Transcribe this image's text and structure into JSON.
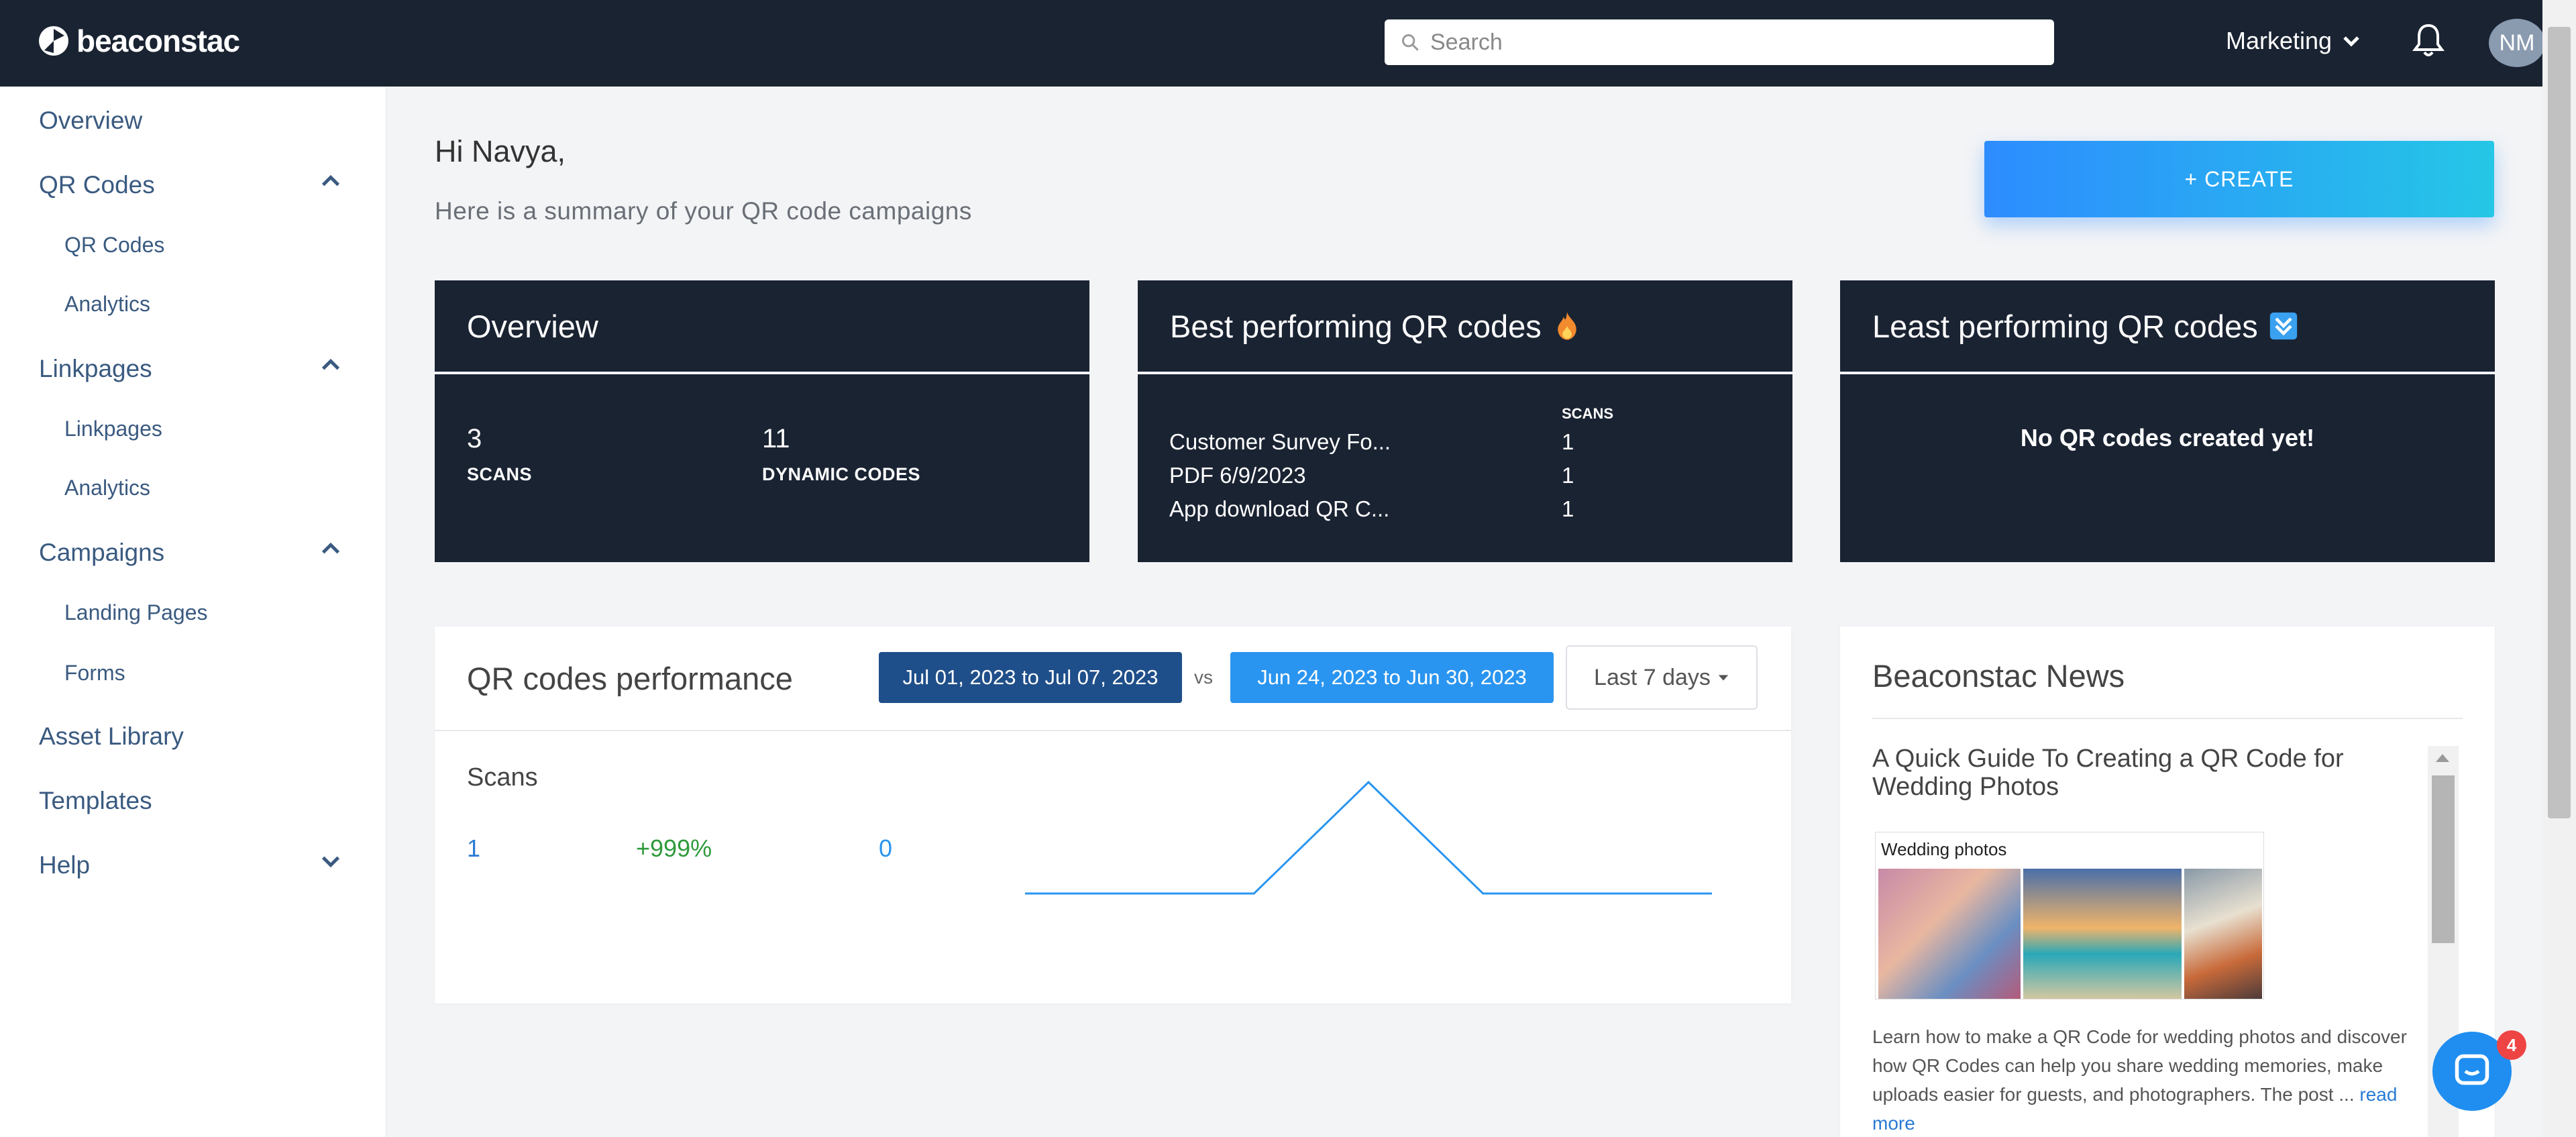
{
  "header": {
    "logo_text": "beaconstac",
    "search_placeholder": "Search",
    "workspace": "Marketing",
    "avatar_initials": "NM"
  },
  "sidebar": {
    "overview": "Overview",
    "qr_group": "QR Codes",
    "qr_codes": "QR Codes",
    "qr_analytics": "Analytics",
    "linkpages_group": "Linkpages",
    "linkpages": "Linkpages",
    "linkpages_analytics": "Analytics",
    "campaigns_group": "Campaigns",
    "landing_pages": "Landing Pages",
    "forms": "Forms",
    "asset_library": "Asset Library",
    "templates": "Templates",
    "help": "Help"
  },
  "main": {
    "greeting": "Hi Navya,",
    "subtitle": "Here is a summary of your QR code campaigns",
    "create_label": "+ CREATE"
  },
  "overview_card": {
    "title": "Overview",
    "scans_value": "3",
    "scans_label": "SCANS",
    "dynamic_value": "11",
    "dynamic_label": "DYNAMIC CODES"
  },
  "best_card": {
    "title": "Best performing QR codes",
    "scans_header": "SCANS",
    "rows": [
      {
        "name": "Customer Survey Fo...",
        "scans": "1"
      },
      {
        "name": "PDF 6/9/2023",
        "scans": "1"
      },
      {
        "name": "App download QR C...",
        "scans": "1"
      }
    ]
  },
  "least_card": {
    "title": "Least performing QR codes",
    "empty_text": "No QR codes created yet!"
  },
  "performance": {
    "title": "QR codes performance",
    "current_range": "Jul 01, 2023 to Jul 07, 2023",
    "vs": "vs",
    "previous_range": "Jun 24, 2023 to Jun 30, 2023",
    "range_select": "Last 7 days",
    "metric_label": "Scans",
    "current_value": "1",
    "change_pct": "+999%",
    "previous_value": "0"
  },
  "chart_data": {
    "type": "line",
    "x": [
      1,
      2,
      3,
      4,
      5,
      6,
      7
    ],
    "series": [
      {
        "values": [
          0,
          0,
          0,
          1,
          0,
          0,
          0
        ]
      }
    ],
    "ylim": [
      0,
      1
    ]
  },
  "news": {
    "title": "Beaconstac News",
    "article_title": "A Quick Guide To Creating a QR Code for Wedding Photos",
    "image_caption": "Wedding photos",
    "article_body": "Learn how to make a QR Code for wedding photos and discover how QR Codes can help you share wedding memories, make uploads easier for guests, and photographers. The post ...",
    "read_more": "read more"
  },
  "chat": {
    "badge_count": "4"
  },
  "colors": {
    "topbar": "#1a2332",
    "accent_blue": "#2a95f0",
    "dark_blue": "#1f4f8a",
    "positive_green": "#2f9a3c"
  }
}
